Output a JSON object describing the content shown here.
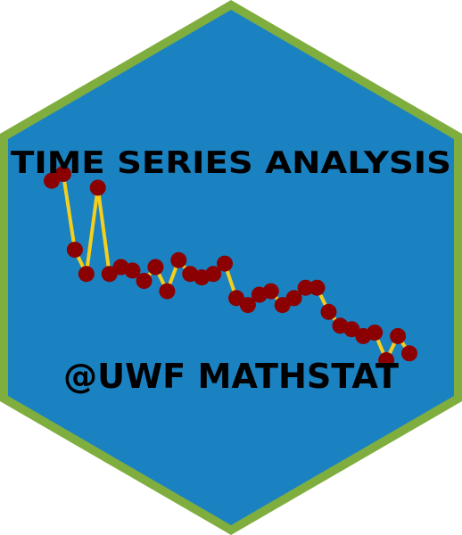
{
  "sticker": {
    "title": "TIME SERIES ANALYSIS",
    "handle": "@UWF MATHSTAT",
    "colors": {
      "border": "#7fae3e",
      "fill": "#1b82c2",
      "line": "#f5cf1a",
      "point": "#8b0000",
      "text": "#000000"
    }
  },
  "chart_data": {
    "type": "line",
    "title": "",
    "xlabel": "",
    "ylabel": "",
    "grid": false,
    "note": "decorative time-series sketch with no axes; values are relative levels (higher = larger)",
    "series": [
      {
        "name": "series",
        "x": [
          1,
          2,
          3,
          4,
          5,
          6,
          7,
          8,
          9,
          10,
          11,
          12,
          13,
          14,
          15,
          16,
          17,
          18,
          19,
          20,
          21,
          22,
          23,
          24,
          25,
          26,
          27,
          28,
          29,
          30,
          31,
          32
        ],
        "values": [
          100,
          102,
          80,
          73,
          98,
          73,
          75,
          74,
          71,
          75,
          68,
          77,
          73,
          72,
          73,
          76,
          66,
          64,
          67,
          68,
          64,
          66,
          69,
          69,
          62,
          58,
          57,
          55,
          56,
          48,
          55,
          50
        ]
      }
    ]
  }
}
